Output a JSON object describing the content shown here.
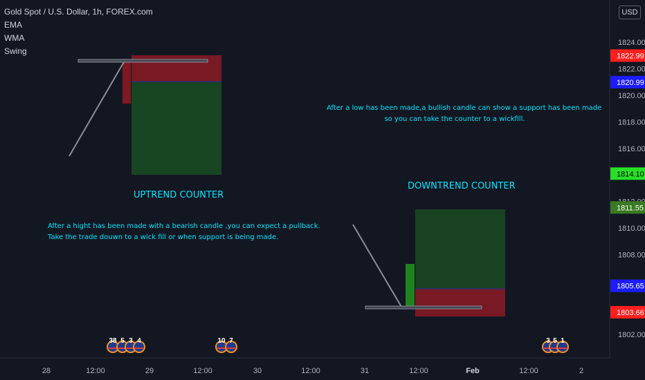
{
  "legend": {
    "symbol": "Gold Spot / U.S. Dollar, 1h, FOREX.com",
    "indicators": [
      "EMA",
      "WMA",
      "Swing"
    ]
  },
  "currency_button": "USD",
  "annotations": {
    "uptrend_title": "UPTREND COUNTER",
    "downtrend_title": "DOWNTREND COUNTER",
    "uptrend_text": [
      "After a hight has been made with a bearish candle ,you can expect a pullback.",
      "Take the trade douwn to a wick fill or when support is being made."
    ],
    "downtrend_text": [
      "After a low has been made,a bullish candle can show a support has been made",
      "so you can take the counter to a wickfill."
    ]
  },
  "colors": {
    "background": "#131722",
    "text": "#b2b5be",
    "annotation": "#00e5ff",
    "loss_zone": "#8b1a24",
    "profit_zone": "#1a4a22",
    "price_red": "#ff1f1f",
    "price_blue": "#1c1cff",
    "price_green": "#28e028",
    "price_olive": "#3a7a22"
  },
  "chart_data": {
    "type": "line",
    "y_axis": {
      "range": [
        1801,
        1826
      ],
      "ticks": [
        "1824.00",
        "1822.00",
        "1820.00",
        "1818.00",
        "1816.00",
        "1812.00",
        "1810.00",
        "1808.00",
        "1802.00"
      ]
    },
    "x_axis": {
      "ticks": [
        "28",
        "12:00",
        "29",
        "12:00",
        "30",
        "12:00",
        "31",
        "12:00",
        "Feb",
        "12:00",
        "2"
      ]
    },
    "price_labels": [
      {
        "value": "1822.99",
        "color": "#ff1f1f"
      },
      {
        "value": "1820.99",
        "color": "#1c1cff"
      },
      {
        "value": "1814.10",
        "color": "#28e028"
      },
      {
        "value": "1811.55",
        "color": "#3a7a22"
      },
      {
        "value": "1805.65",
        "color": "#1c1cff"
      },
      {
        "value": "1803.66",
        "color": "#ff1f1f"
      }
    ],
    "event_badges": [
      {
        "label": "38"
      },
      {
        "label": "5"
      },
      {
        "label": "3"
      },
      {
        "label": "4"
      },
      {
        "label": "10"
      },
      {
        "label": "7"
      },
      {
        "label": "3"
      },
      {
        "label": "5"
      },
      {
        "label": "1"
      }
    ],
    "positions": [
      {
        "name": "uptrend",
        "entry": 1820.99,
        "stop": 1822.99,
        "target": 1814.1
      },
      {
        "name": "downtrend",
        "entry": 1805.65,
        "stop": 1803.66,
        "target": 1811.55
      }
    ]
  }
}
